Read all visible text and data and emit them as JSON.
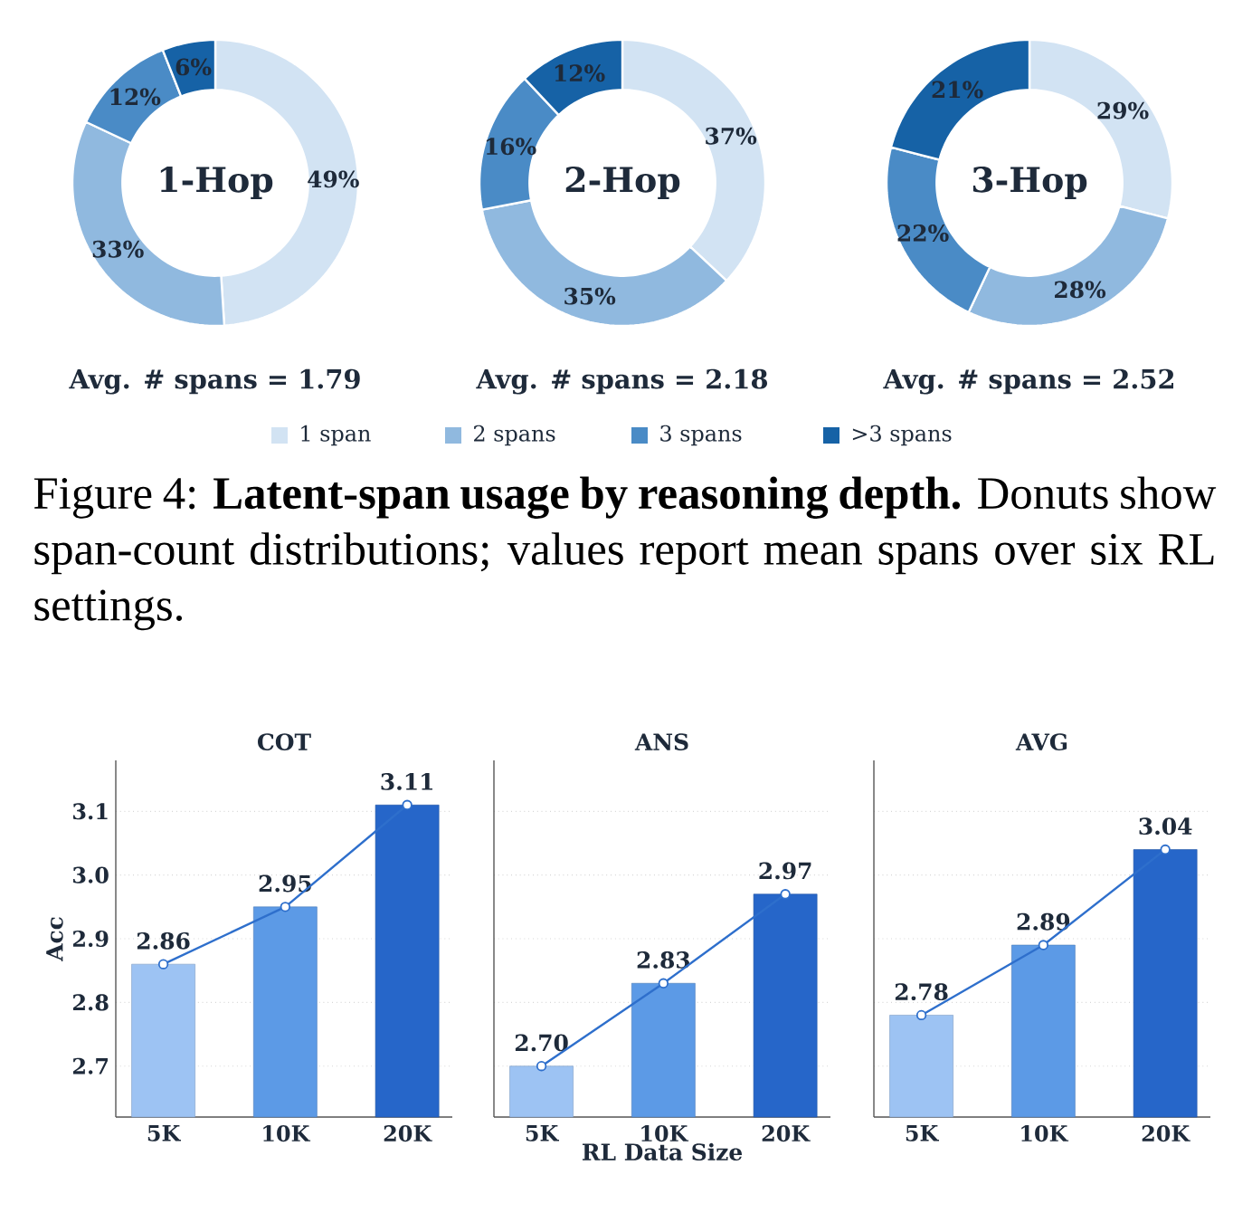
{
  "chart_data": [
    {
      "type": "donut",
      "title": "1-Hop",
      "subtitle": "Avg. # spans = 1.79",
      "categories": [
        null,
        null,
        null,
        null
      ],
      "values": [
        49,
        33,
        12,
        6
      ],
      "value_labels": [
        "49%",
        "33%",
        "12%",
        "6%"
      ],
      "colors": [
        "#d2e3f3",
        "#90b9df",
        "#4a8bc6",
        "#1662a6"
      ]
    },
    {
      "type": "donut",
      "title": "2-Hop",
      "subtitle": "Avg. # spans = 2.18",
      "categories": [
        "1 span",
        "2 spans",
        "3 spans",
        ">3 spans"
      ],
      "values": [
        37,
        35,
        16,
        12
      ],
      "value_labels": [
        "37%",
        "35%",
        "16%",
        "12%"
      ],
      "colors": [
        "#d2e3f3",
        "#90b9df",
        "#4a8bc6",
        "#1662a6"
      ],
      "legend": "bottom",
      "annotations": [
        "Figure 4: **Latent-span usage by reasoning depth.** Donuts show span-count distributions; values report mean spans over six RL settings."
      ]
    },
    {
      "type": "donut",
      "title": "3-Hop",
      "subtitle": "Avg. # spans = 2.52",
      "categories": [
        null,
        null,
        null,
        null
      ],
      "values": [
        29,
        28,
        22,
        21
      ],
      "value_labels": [
        "29%",
        "28%",
        "22%",
        "21%"
      ],
      "colors": [
        "#d2e3f3",
        "#90b9df",
        "#4a8bc6",
        "#1662a6"
      ]
    },
    {
      "type": "bar",
      "title": "COT",
      "ylabel": "Acc",
      "categories": [
        "5K",
        "10K",
        "20K"
      ],
      "ylim": [
        2.62,
        3.18
      ],
      "yticks": [
        2.7,
        2.8,
        2.9,
        {
          "value": 3.0,
          "label": "3.0"
        },
        3.1
      ],
      "grid": "y",
      "marker": "circle",
      "series": [
        {
          "type": "bar",
          "colors": [
            "#9dc3f3",
            "#5c9ae6",
            "#2666c9"
          ],
          "values": [
            2.86,
            2.95,
            3.11
          ],
          "value_labels": [
            "2.86",
            "2.95",
            "3.11"
          ]
        },
        {
          "type": "line",
          "color": "#2e6fcc",
          "values": [
            2.86,
            2.95,
            3.11
          ]
        }
      ]
    },
    {
      "type": "bar",
      "title": "ANS",
      "xlabel": "RL Data Size",
      "categories": [
        "5K",
        "10K",
        "20K"
      ],
      "ylim": [
        2.62,
        3.18
      ],
      "yticks": [
        2.7,
        2.8,
        2.9,
        3.0,
        3.1
      ],
      "grid": "y",
      "marker": "circle",
      "tick_labels": "x",
      "series": [
        {
          "type": "bar",
          "colors": [
            "#9dc3f3",
            "#5c9ae6",
            "#2666c9"
          ],
          "values": [
            2.7,
            2.83,
            2.97
          ],
          "value_labels": [
            "2.70",
            "2.83",
            "2.97"
          ]
        },
        {
          "type": "line",
          "color": "#2e6fcc",
          "values": [
            2.7,
            2.83,
            2.97
          ]
        }
      ]
    },
    {
      "type": "bar",
      "title": "AVG",
      "categories": [
        "5K",
        "10K",
        "20K"
      ],
      "ylim": [
        2.62,
        3.18
      ],
      "yticks": [
        2.7,
        2.8,
        2.9,
        3.0,
        3.1
      ],
      "grid": "y",
      "marker": "circle",
      "tick_labels": "x",
      "series": [
        {
          "type": "bar",
          "colors": [
            "#9dc3f3",
            "#5c9ae6",
            "#2666c9"
          ],
          "values": [
            2.78,
            2.89,
            3.04
          ],
          "value_labels": [
            "2.78",
            "2.89",
            "3.04"
          ]
        },
        {
          "type": "line",
          "color": "#2e6fcc",
          "values": [
            2.78,
            2.89,
            3.04
          ]
        }
      ]
    }
  ]
}
